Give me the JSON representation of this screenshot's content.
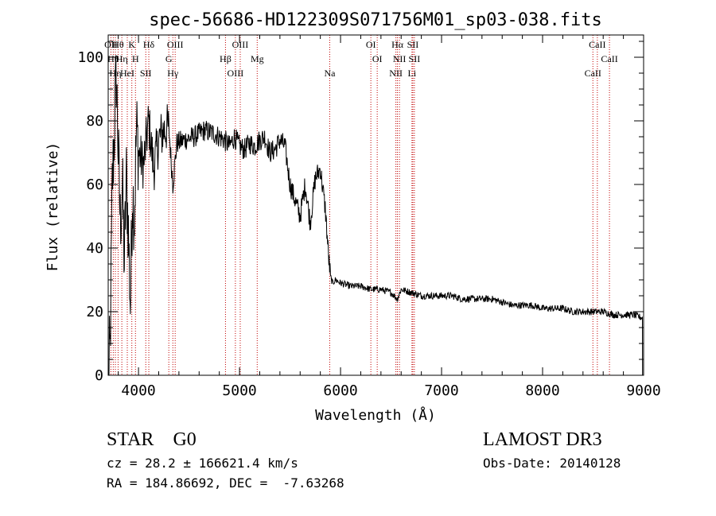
{
  "chart_data": {
    "type": "line",
    "title": "spec-56686-HD122309S071756M01_sp03-038.fits",
    "xlabel": "Wavelength (Å)",
    "ylabel": "Flux (relative)",
    "xlim": [
      3700,
      9000
    ],
    "ylim": [
      0,
      107
    ],
    "xticks": [
      4000,
      5000,
      6000,
      7000,
      8000,
      9000
    ],
    "yticks": [
      0,
      20,
      40,
      60,
      80,
      100
    ],
    "series": [
      {
        "name": "flux",
        "x": [
          3700,
          3720,
          3740,
          3760,
          3780,
          3800,
          3820,
          3840,
          3860,
          3880,
          3900,
          3920,
          3940,
          3960,
          3980,
          4000,
          4050,
          4100,
          4150,
          4200,
          4250,
          4300,
          4340,
          4380,
          4450,
          4550,
          4650,
          4750,
          4850,
          4900,
          4950,
          5000,
          5050,
          5100,
          5150,
          5200,
          5250,
          5300,
          5350,
          5400,
          5450,
          5500,
          5550,
          5600,
          5650,
          5700,
          5750,
          5800,
          5850,
          5880,
          5900,
          5920,
          5950,
          6000,
          6100,
          6200,
          6300,
          6400,
          6500,
          6562,
          6600,
          6700,
          6800,
          6900,
          7000,
          7100,
          7200,
          7300,
          7400,
          7500,
          7600,
          7700,
          7800,
          7900,
          8000,
          8100,
          8200,
          8300,
          8400,
          8500,
          8600,
          8700,
          8800,
          8900,
          8990
        ],
        "values": [
          0,
          8,
          60,
          75,
          95,
          70,
          48,
          60,
          35,
          62,
          45,
          22,
          58,
          50,
          78,
          70,
          66,
          80,
          65,
          74,
          77,
          78,
          60,
          73,
          74,
          75,
          77,
          76,
          74,
          72,
          75,
          72,
          71,
          73,
          72,
          74,
          75,
          70,
          71,
          74,
          72,
          60,
          55,
          50,
          60,
          48,
          62,
          65,
          52,
          38,
          31,
          29,
          30,
          29,
          28,
          28,
          27,
          27,
          26,
          24,
          27,
          26,
          25,
          25,
          25,
          25,
          24,
          24,
          24,
          24,
          23,
          22,
          22,
          22,
          21,
          21,
          21,
          20,
          20,
          20,
          20,
          19,
          19,
          19,
          18
        ]
      }
    ],
    "lines": [
      {
        "wave": 3727,
        "label": "OII"
      },
      {
        "wave": 3750,
        "label": "Hθ"
      },
      {
        "wave": 3771,
        "label": "Hη"
      },
      {
        "wave": 3798,
        "label": "Hθ"
      },
      {
        "wave": 3835,
        "label": "Hη"
      },
      {
        "wave": 3889,
        "label": "HeI"
      },
      {
        "wave": 3934,
        "label": "K"
      },
      {
        "wave": 3970,
        "label": "H"
      },
      {
        "wave": 4072,
        "label": "SII"
      },
      {
        "wave": 4102,
        "label": "Hδ"
      },
      {
        "wave": 4300,
        "label": "G"
      },
      {
        "wave": 4340,
        "label": "Hγ"
      },
      {
        "wave": 4363,
        "label": "OIII"
      },
      {
        "wave": 4861,
        "label": "Hβ"
      },
      {
        "wave": 4959,
        "label": "OIII"
      },
      {
        "wave": 5007,
        "label": "OIII"
      },
      {
        "wave": 5175,
        "label": "Mg"
      },
      {
        "wave": 5893,
        "label": "Na"
      },
      {
        "wave": 6300,
        "label": "OI"
      },
      {
        "wave": 6363,
        "label": "OI"
      },
      {
        "wave": 6548,
        "label": "NII"
      },
      {
        "wave": 6563,
        "label": "Hα"
      },
      {
        "wave": 6583,
        "label": "NII"
      },
      {
        "wave": 6707,
        "label": "Li"
      },
      {
        "wave": 6716,
        "label": "SII"
      },
      {
        "wave": 6731,
        "label": "SII"
      },
      {
        "wave": 8498,
        "label": "CaII"
      },
      {
        "wave": 8542,
        "label": "CaII"
      },
      {
        "wave": 8662,
        "label": "CaII"
      }
    ]
  },
  "footer": {
    "class_label": "STAR",
    "subclass_label": "G0",
    "redshift": "cz = 28.2 ± 166621.4 km/s",
    "coordinates": "RA = 184.86692, DEC =  -7.63268",
    "survey": "LAMOST DR3",
    "obs_date": "Obs-Date: 20140128"
  },
  "colors": {
    "line": "#000000",
    "marker": "#c00000"
  }
}
